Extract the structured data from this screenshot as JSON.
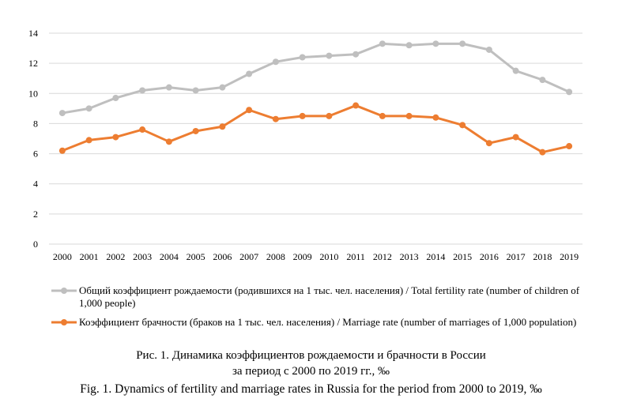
{
  "chart_data": {
    "type": "line",
    "categories": [
      "2000",
      "2001",
      "2002",
      "2003",
      "2004",
      "2005",
      "2006",
      "2007",
      "2008",
      "2009",
      "2010",
      "2011",
      "2012",
      "2013",
      "2014",
      "2015",
      "2016",
      "2017",
      "2018",
      "2019"
    ],
    "ylim": [
      0,
      14
    ],
    "yticks": [
      0,
      2,
      4,
      6,
      8,
      10,
      12,
      14
    ],
    "grid": true,
    "legend_position": "bottom",
    "series": [
      {
        "name": "Общий коэффициент рождаемости (родившихся на 1 тыс. чел. населения) / Total fertility rate (number of children of 1,000 people)",
        "color": "#bfbfbf",
        "values": [
          8.7,
          9.0,
          9.7,
          10.2,
          10.4,
          10.2,
          10.4,
          11.3,
          12.1,
          12.4,
          12.5,
          12.6,
          13.3,
          13.2,
          13.3,
          13.3,
          12.9,
          11.5,
          10.9,
          10.1
        ]
      },
      {
        "name": "Коэффициент брачности (браков на 1 тыс. чел. населения) / Marriage rate (number of marriages of 1,000 population)",
        "color": "#ed7d31",
        "values": [
          6.2,
          6.9,
          7.1,
          7.6,
          6.8,
          7.5,
          7.8,
          8.9,
          8.3,
          8.5,
          8.5,
          9.2,
          8.5,
          8.5,
          8.4,
          7.9,
          6.7,
          7.1,
          6.1,
          6.5
        ]
      }
    ]
  },
  "caption": {
    "line1": "Рис. 1. Динамика коэффициентов рождаемости и брачности в России",
    "line2": "за период с 2000 по 2019 гг., ‰",
    "line3": "Fig. 1. Dynamics of fertility and marriage rates in Russia for the period from 2000 to 2019, ‰"
  }
}
